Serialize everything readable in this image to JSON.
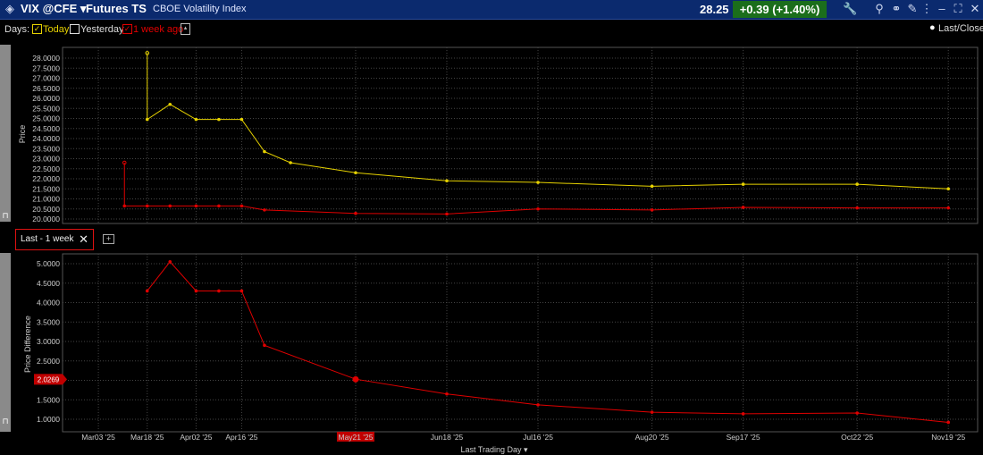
{
  "titlebar": {
    "symbol": "VIX @CFE ▾",
    "view": "Futures TS",
    "description": "CBOE Volatility Index",
    "last_price": "28.25",
    "change": "+0.39 (+1.40%)"
  },
  "days_bar": {
    "label": "Days:",
    "options": [
      {
        "label": "Today",
        "checked": true,
        "color": "#e6d200"
      },
      {
        "label": "Yesterday",
        "checked": false,
        "color": "#dddddd"
      },
      {
        "label": "1 week ago",
        "checked": true,
        "color": "#e00000"
      }
    ],
    "legend_label": "Last/Close"
  },
  "lower_panel_tab": {
    "label": "Last - 1 week"
  },
  "xaxis": {
    "label": "Last Trading Day ▾",
    "ticks": [
      "Mar03 '25",
      "Mar18 '25",
      "Apr02 '25",
      "Apr16 '25",
      "May21 '25",
      "Jun18 '25",
      "Jul16 '25",
      "Aug20 '25",
      "Sep17 '25",
      "Oct22 '25",
      "Nov19 '25"
    ],
    "highlighted_tick": "May21 '25"
  },
  "chart_data": [
    {
      "type": "line",
      "ylabel": "Price",
      "ylim": [
        20.0,
        28.5
      ],
      "yticks": [
        "28.0000",
        "27.5000",
        "27.0000",
        "26.5000",
        "26.0000",
        "25.5000",
        "25.0000",
        "24.5000",
        "24.0000",
        "23.5000",
        "23.0000",
        "22.5000",
        "22.0000",
        "21.5000",
        "21.0000",
        "20.5000",
        "20.0000"
      ],
      "series": [
        {
          "name": "Today",
          "color": "#e6d200",
          "x": [
            "Mar18 '25",
            "Mar18 '25",
            "Mar25 '25",
            "Apr02 '25",
            "Apr09 '25",
            "Apr16 '25",
            "Apr23 '25",
            "May01 '25",
            "May21 '25",
            "Jun18 '25",
            "Jul16 '25",
            "Aug20 '25",
            "Sep17 '25",
            "Oct22 '25",
            "Nov19 '25"
          ],
          "values": [
            28.25,
            24.95,
            25.7,
            24.95,
            24.95,
            24.95,
            23.35,
            22.8,
            22.3,
            21.9,
            21.82,
            21.63,
            21.73,
            21.73,
            21.5
          ]
        },
        {
          "name": "1 week ago",
          "color": "#e00000",
          "x": [
            "Mar11 '25",
            "Mar11 '25",
            "Mar18 '25",
            "Mar25 '25",
            "Apr02 '25",
            "Apr09 '25",
            "Apr16 '25",
            "Apr23 '25",
            "May21 '25",
            "Jun18 '25",
            "Jul16 '25",
            "Aug20 '25",
            "Sep17 '25",
            "Oct22 '25",
            "Nov19 '25"
          ],
          "values": [
            22.8,
            20.65,
            20.65,
            20.65,
            20.65,
            20.65,
            20.65,
            20.45,
            20.28,
            20.25,
            20.5,
            20.45,
            20.58,
            20.55,
            20.55
          ]
        }
      ]
    },
    {
      "type": "line",
      "ylabel": "Price Difference",
      "ylim": [
        0.7,
        5.3
      ],
      "yticks": [
        "5.0000",
        "4.5000",
        "4.0000",
        "3.5000",
        "3.0000",
        "2.5000",
        "2.0000",
        "1.5000",
        "1.0000"
      ],
      "current_value_label": "2.0269",
      "series": [
        {
          "name": "Last - 1 week",
          "color": "#e00000",
          "x": [
            "Mar18 '25",
            "Mar25 '25",
            "Apr02 '25",
            "Apr09 '25",
            "Apr16 '25",
            "Apr23 '25",
            "May21 '25",
            "Jun18 '25",
            "Jul16 '25",
            "Aug20 '25",
            "Sep17 '25",
            "Oct22 '25",
            "Nov19 '25"
          ],
          "values": [
            4.3,
            5.05,
            4.3,
            4.3,
            4.3,
            2.9,
            2.03,
            1.65,
            1.37,
            1.18,
            1.14,
            1.16,
            0.92
          ]
        }
      ]
    }
  ]
}
